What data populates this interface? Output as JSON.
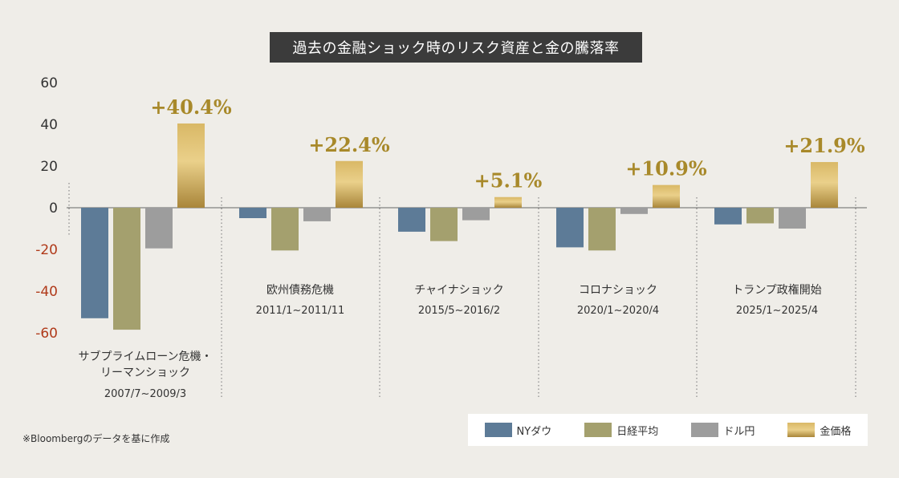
{
  "chart_data": {
    "type": "bar",
    "title": "過去の金融ショック時のリスク資産と金の騰落率",
    "ylim": [
      -60,
      60
    ],
    "yticks": [
      60,
      40,
      20,
      0,
      -20,
      -40,
      -60
    ],
    "yticks_text": [
      "60",
      "40",
      "20",
      "0",
      "-20",
      "-40",
      "-60"
    ],
    "categories": [
      {
        "name_lines": [
          "サブプライムローン危機・",
          "リーマンショック"
        ],
        "period": "2007/7~2009/3"
      },
      {
        "name_lines": [
          "欧州債務危機"
        ],
        "period": "2011/1~2011/11"
      },
      {
        "name_lines": [
          "チャイナショック"
        ],
        "period": "2015/5~2016/2"
      },
      {
        "name_lines": [
          "コロナショック"
        ],
        "period": "2020/1~2020/4"
      },
      {
        "name_lines": [
          "トランプ政権開始"
        ],
        "period": "2025/1~2025/4"
      }
    ],
    "series": [
      {
        "name": "NYダウ",
        "values": [
          -53,
          -5,
          -11.5,
          -19,
          -8
        ]
      },
      {
        "name": "日経平均",
        "values": [
          -58.5,
          -20.5,
          -16,
          -20.5,
          -7.5
        ]
      },
      {
        "name": "ドル円",
        "values": [
          -19.5,
          -6.5,
          -6,
          -3,
          -10
        ]
      },
      {
        "name": "金価格",
        "values": [
          40.4,
          22.4,
          5.1,
          10.9,
          21.9
        ]
      }
    ],
    "gold_labels": [
      "+40.4%",
      "+22.4%",
      "+5.1%",
      "+10.9%",
      "+21.9%"
    ],
    "colors": {
      "dow": "#5d7b97",
      "nikkei": "#a4a06e",
      "usdjpy": "#9d9d9d",
      "gold_light": "#e6cb7c",
      "gold_dark": "#b08f3b",
      "gold_label": "#a8892a",
      "negative_tick": "#b03a1a"
    },
    "source_note": "※Bloombergのデータを基に作成",
    "legend": [
      "NYダウ",
      "日経平均",
      "ドル円",
      "金価格"
    ]
  }
}
